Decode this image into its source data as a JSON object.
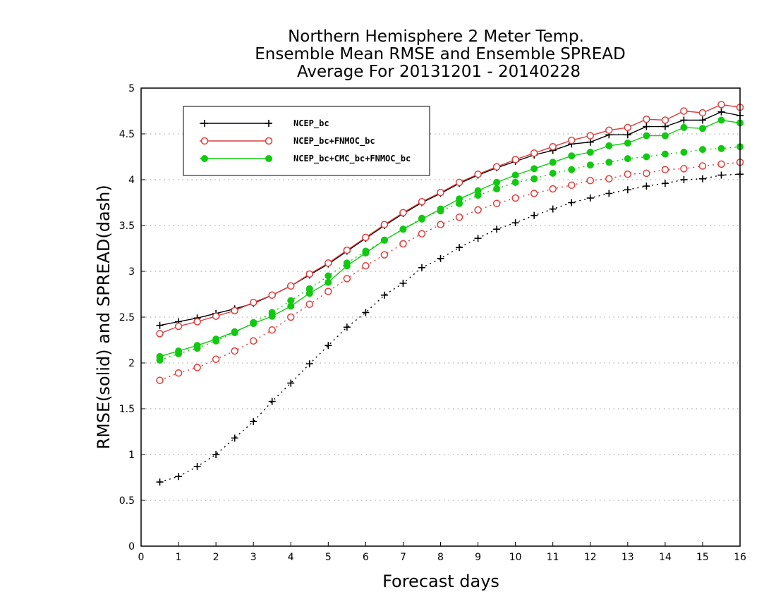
{
  "chart_data": {
    "type": "line",
    "title": [
      "Northern Hemisphere 2 Meter Temp.",
      "Ensemble Mean RMSE and Ensemble SPREAD",
      "Average For 20131201 - 20140228"
    ],
    "xlabel": "Forecast days",
    "ylabel": "RMSE(solid) and SPREAD(dash)",
    "xlim": [
      0,
      16
    ],
    "ylim": [
      0,
      5
    ],
    "xticks": [
      "0",
      "1",
      "2",
      "3",
      "4",
      "5",
      "6",
      "7",
      "8",
      "9",
      "10",
      "11",
      "12",
      "13",
      "14",
      "15",
      "16"
    ],
    "yticks": [
      "0",
      "0.5",
      "1",
      "1.5",
      "2",
      "2.5",
      "3",
      "3.5",
      "4",
      "4.5",
      "5"
    ],
    "grid": "horizontal dotted",
    "legend_position": "top-left",
    "x": [
      0.5,
      1,
      1.5,
      2,
      2.5,
      3,
      3.5,
      4,
      4.5,
      5,
      5.5,
      6,
      6.5,
      7,
      7.5,
      8,
      8.5,
      9,
      9.5,
      10,
      10.5,
      11,
      11.5,
      12,
      12.5,
      13,
      13.5,
      14,
      14.5,
      15,
      15.5,
      16
    ],
    "series": [
      {
        "name": "NCEP_bc",
        "color": "#000000",
        "marker": "plus",
        "rmse": [
          2.41,
          2.45,
          2.49,
          2.54,
          2.59,
          2.65,
          2.74,
          2.84,
          2.96,
          3.08,
          3.22,
          3.36,
          3.5,
          3.63,
          3.75,
          3.85,
          3.96,
          4.05,
          4.13,
          4.2,
          4.27,
          4.32,
          4.39,
          4.41,
          4.49,
          4.49,
          4.58,
          4.58,
          4.65,
          4.65,
          4.74,
          4.7
        ],
        "spread": [
          0.7,
          0.76,
          0.87,
          1.0,
          1.18,
          1.36,
          1.58,
          1.78,
          1.99,
          2.19,
          2.39,
          2.55,
          2.74,
          2.87,
          3.04,
          3.14,
          3.26,
          3.36,
          3.46,
          3.53,
          3.61,
          3.68,
          3.75,
          3.8,
          3.85,
          3.89,
          3.93,
          3.96,
          4.0,
          4.01,
          4.05,
          4.06
        ]
      },
      {
        "name": "NCEP_bc+FNMOC_bc",
        "color": "#e03c3c",
        "marker": "open-circle",
        "rmse": [
          2.32,
          2.4,
          2.45,
          2.51,
          2.57,
          2.66,
          2.74,
          2.84,
          2.97,
          3.09,
          3.23,
          3.37,
          3.51,
          3.64,
          3.76,
          3.86,
          3.97,
          4.06,
          4.14,
          4.22,
          4.29,
          4.36,
          4.43,
          4.48,
          4.54,
          4.57,
          4.66,
          4.65,
          4.75,
          4.73,
          4.82,
          4.79
        ],
        "spread": [
          1.81,
          1.89,
          1.95,
          2.04,
          2.13,
          2.24,
          2.36,
          2.5,
          2.64,
          2.78,
          2.92,
          3.06,
          3.18,
          3.3,
          3.41,
          3.51,
          3.59,
          3.67,
          3.74,
          3.8,
          3.85,
          3.9,
          3.94,
          3.99,
          4.01,
          4.06,
          4.07,
          4.11,
          4.12,
          4.15,
          4.17,
          4.19
        ]
      },
      {
        "name": "NCEP_bc+CMC_bc+FNMOC_bc",
        "color": "#12c912",
        "marker": "filled-circle",
        "rmse": [
          2.07,
          2.13,
          2.19,
          2.26,
          2.34,
          2.43,
          2.51,
          2.62,
          2.76,
          2.88,
          3.06,
          3.2,
          3.34,
          3.46,
          3.57,
          3.68,
          3.79,
          3.88,
          3.97,
          4.05,
          4.12,
          4.19,
          4.26,
          4.3,
          4.37,
          4.4,
          4.48,
          4.48,
          4.57,
          4.56,
          4.65,
          4.62
        ],
        "spread": [
          2.03,
          2.1,
          2.16,
          2.24,
          2.33,
          2.44,
          2.55,
          2.68,
          2.81,
          2.95,
          3.09,
          3.22,
          3.34,
          3.46,
          3.58,
          3.66,
          3.74,
          3.83,
          3.9,
          3.97,
          4.01,
          4.07,
          4.11,
          4.16,
          4.19,
          4.23,
          4.25,
          4.28,
          4.3,
          4.33,
          4.34,
          4.36
        ]
      }
    ]
  }
}
